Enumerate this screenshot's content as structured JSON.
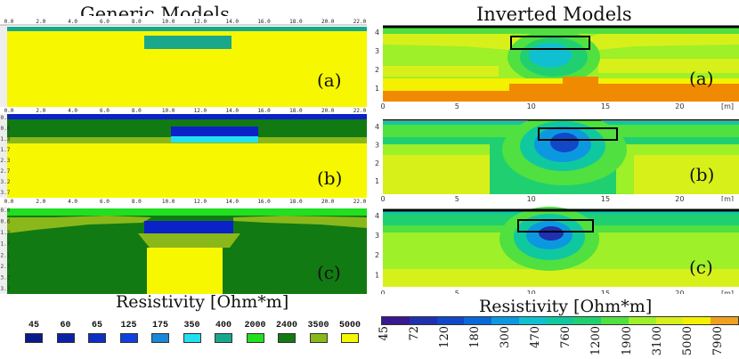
{
  "headers": {
    "left_title": "Generic Models",
    "right_title": "Inverted Models"
  },
  "left_panels": [
    {
      "label": "(a)",
      "x_ticks": [
        "0.0",
        "2.0",
        "4.0",
        "6.0",
        "8.0",
        "10.0",
        "12.0",
        "14.0",
        "16.0",
        "18.0",
        "20.0",
        "22.0"
      ]
    },
    {
      "label": "(b)",
      "x_ticks": [
        "0.0",
        "2.0",
        "4.0",
        "6.0",
        "8.0",
        "10.0",
        "12.0",
        "14.0",
        "16.0",
        "18.0",
        "20.0",
        "22.0"
      ],
      "y_ticks": [
        "0.0",
        "0.6",
        "1.3",
        "1.7",
        "2.3",
        "2.7",
        "3.2",
        "3.7"
      ]
    },
    {
      "label": "(c)",
      "x_ticks": [
        "0.0",
        "2.0",
        "4.0",
        "6.0",
        "8.0",
        "10.0",
        "12.0",
        "14.0",
        "16.0",
        "18.0",
        "20.0",
        "22.0"
      ],
      "y_ticks": [
        "0.0",
        "0.6",
        "1.3",
        "1.7",
        "2.1",
        "2.7",
        "3.2",
        "3.7"
      ]
    }
  ],
  "right_panels": [
    {
      "label": "(a)",
      "y_ticks": [
        "4",
        "3",
        "2",
        "1"
      ],
      "x_ticks": [
        "0",
        "5",
        "10",
        "15",
        "20"
      ],
      "x_unit": "[m]"
    },
    {
      "label": "(b)",
      "y_ticks": [
        "4",
        "3",
        "2",
        "1"
      ],
      "x_ticks": [
        "0",
        "5",
        "10",
        "15",
        "20"
      ],
      "x_unit": "[m]"
    },
    {
      "label": "(c)",
      "y_ticks": [
        "4",
        "3",
        "2",
        "1"
      ],
      "x_ticks": [
        "0",
        "5",
        "10",
        "15",
        "20"
      ],
      "x_unit": "[m]"
    }
  ],
  "legend_left": {
    "title": "Resistivity [Ohm*m]",
    "items": [
      {
        "value": "45",
        "color": "#0a1a8a"
      },
      {
        "value": "60",
        "color": "#0b22a8"
      },
      {
        "value": "65",
        "color": "#0d2fc4"
      },
      {
        "value": "125",
        "color": "#1040e0"
      },
      {
        "value": "175",
        "color": "#1a88d8"
      },
      {
        "value": "350",
        "color": "#22e0f0"
      },
      {
        "value": "400",
        "color": "#1aa88a"
      },
      {
        "value": "2000",
        "color": "#20e020"
      },
      {
        "value": "2400",
        "color": "#127a12"
      },
      {
        "value": "3500",
        "color": "#8ab81a"
      },
      {
        "value": "5000",
        "color": "#f7f700"
      }
    ]
  },
  "legend_right": {
    "title": "Resistivity [Ohm*m]",
    "labels": [
      "45",
      "72",
      "120",
      "180",
      "300",
      "470",
      "760",
      "1200",
      "1900",
      "3100",
      "5000",
      "7900"
    ],
    "colors": [
      "#3a1890",
      "#2030b0",
      "#1048c8",
      "#0a68d8",
      "#0c98e0",
      "#10c0d0",
      "#10c8a0",
      "#20d070",
      "#50e040",
      "#9ef028",
      "#d8f01a",
      "#f4f000",
      "#f0a020"
    ]
  },
  "colors": {
    "yellow": "#f7f700",
    "teal": "#1aa88a",
    "dark_blue": "#0a22c8",
    "cyan": "#22e0f0",
    "dark_green": "#127a12",
    "olive": "#8ab81a",
    "bright_green": "#20e020",
    "orange": "#f08a00"
  }
}
